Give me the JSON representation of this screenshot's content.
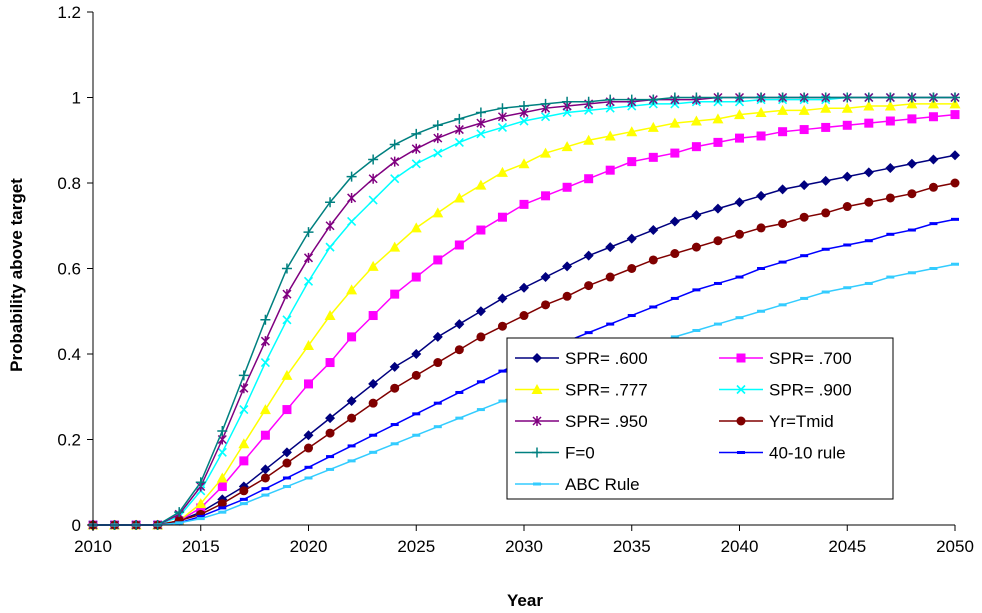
{
  "chart_data": {
    "type": "line",
    "xlabel": "Year",
    "ylabel": "Probability above target",
    "xlim": [
      2010,
      2050
    ],
    "ylim": [
      0,
      1.2
    ],
    "xticks": [
      "2010",
      "2015",
      "2020",
      "2025",
      "2030",
      "2035",
      "2040",
      "2045",
      "2050"
    ],
    "yticks": [
      "0",
      "0.2",
      "0.4",
      "0.6",
      "0.8",
      "1",
      "1.2"
    ],
    "grid": false,
    "legend_position": "bottom-right",
    "x": [
      2010,
      2011,
      2012,
      2013,
      2014,
      2015,
      2016,
      2017,
      2018,
      2019,
      2020,
      2021,
      2022,
      2023,
      2024,
      2025,
      2026,
      2027,
      2028,
      2029,
      2030,
      2031,
      2032,
      2033,
      2034,
      2035,
      2036,
      2037,
      2038,
      2039,
      2040,
      2041,
      2042,
      2043,
      2044,
      2045,
      2046,
      2047,
      2048,
      2049,
      2050
    ],
    "series": [
      {
        "name": "SPR= .600",
        "color": "#00007f",
        "marker": "diamond",
        "values": [
          0,
          0,
          0,
          0,
          0.01,
          0.03,
          0.06,
          0.09,
          0.13,
          0.17,
          0.21,
          0.25,
          0.29,
          0.33,
          0.37,
          0.4,
          0.44,
          0.47,
          0.5,
          0.53,
          0.555,
          0.58,
          0.605,
          0.63,
          0.65,
          0.67,
          0.69,
          0.71,
          0.725,
          0.74,
          0.755,
          0.77,
          0.785,
          0.795,
          0.805,
          0.815,
          0.825,
          0.835,
          0.845,
          0.855,
          0.865
        ]
      },
      {
        "name": "SPR= .700",
        "color": "#ff00ff",
        "marker": "square",
        "values": [
          0,
          0,
          0,
          0,
          0.01,
          0.04,
          0.09,
          0.15,
          0.21,
          0.27,
          0.33,
          0.38,
          0.44,
          0.49,
          0.54,
          0.58,
          0.62,
          0.655,
          0.69,
          0.72,
          0.75,
          0.77,
          0.79,
          0.81,
          0.83,
          0.85,
          0.86,
          0.87,
          0.885,
          0.895,
          0.905,
          0.91,
          0.92,
          0.925,
          0.93,
          0.935,
          0.94,
          0.945,
          0.95,
          0.955,
          0.96
        ]
      },
      {
        "name": "SPR= .777",
        "color": "#ffff00",
        "marker": "triangle",
        "values": [
          0,
          0,
          0,
          0,
          0.01,
          0.05,
          0.11,
          0.19,
          0.27,
          0.35,
          0.42,
          0.49,
          0.55,
          0.605,
          0.65,
          0.695,
          0.73,
          0.765,
          0.795,
          0.825,
          0.845,
          0.87,
          0.885,
          0.9,
          0.91,
          0.92,
          0.93,
          0.94,
          0.945,
          0.95,
          0.96,
          0.965,
          0.97,
          0.97,
          0.975,
          0.975,
          0.98,
          0.98,
          0.985,
          0.985,
          0.985
        ]
      },
      {
        "name": "SPR= .900",
        "color": "#00ffff",
        "marker": "x",
        "values": [
          0,
          0,
          0,
          0,
          0.02,
          0.08,
          0.17,
          0.27,
          0.38,
          0.48,
          0.57,
          0.65,
          0.71,
          0.76,
          0.81,
          0.845,
          0.87,
          0.895,
          0.915,
          0.93,
          0.945,
          0.955,
          0.965,
          0.97,
          0.975,
          0.98,
          0.985,
          0.985,
          0.99,
          0.99,
          0.99,
          0.995,
          0.995,
          0.995,
          0.995,
          1,
          1,
          1,
          1,
          1,
          1
        ]
      },
      {
        "name": "SPR= .950",
        "color": "#800080",
        "marker": "star",
        "values": [
          0,
          0,
          0,
          0,
          0.025,
          0.09,
          0.2,
          0.32,
          0.43,
          0.54,
          0.625,
          0.7,
          0.765,
          0.81,
          0.85,
          0.88,
          0.905,
          0.925,
          0.94,
          0.955,
          0.965,
          0.975,
          0.98,
          0.985,
          0.99,
          0.99,
          0.995,
          0.995,
          0.995,
          1,
          1,
          1,
          1,
          1,
          1,
          1,
          1,
          1,
          1,
          1,
          1
        ]
      },
      {
        "name": "Yr=Tmid",
        "color": "#800000",
        "marker": "circle",
        "values": [
          0,
          0,
          0,
          0,
          0.01,
          0.025,
          0.05,
          0.08,
          0.11,
          0.145,
          0.18,
          0.215,
          0.25,
          0.285,
          0.32,
          0.35,
          0.38,
          0.41,
          0.44,
          0.465,
          0.49,
          0.515,
          0.535,
          0.56,
          0.58,
          0.6,
          0.62,
          0.635,
          0.65,
          0.665,
          0.68,
          0.695,
          0.705,
          0.72,
          0.73,
          0.745,
          0.755,
          0.765,
          0.775,
          0.79,
          0.8
        ]
      },
      {
        "name": "F=0",
        "color": "#008080",
        "marker": "plus",
        "values": [
          0,
          0,
          0,
          0,
          0.03,
          0.1,
          0.22,
          0.35,
          0.48,
          0.6,
          0.685,
          0.755,
          0.815,
          0.855,
          0.89,
          0.915,
          0.935,
          0.95,
          0.965,
          0.975,
          0.98,
          0.985,
          0.99,
          0.99,
          0.995,
          0.995,
          0.995,
          1,
          1,
          1,
          1,
          1,
          1,
          1,
          1,
          1,
          1,
          1,
          1,
          1,
          1
        ]
      },
      {
        "name": "40-10 rule",
        "color": "#0000ff",
        "marker": "dash",
        "values": [
          0,
          0,
          0,
          0,
          0.005,
          0.02,
          0.04,
          0.06,
          0.085,
          0.11,
          0.135,
          0.16,
          0.185,
          0.21,
          0.235,
          0.26,
          0.285,
          0.31,
          0.335,
          0.36,
          0.385,
          0.41,
          0.43,
          0.45,
          0.47,
          0.49,
          0.51,
          0.53,
          0.55,
          0.565,
          0.58,
          0.6,
          0.615,
          0.63,
          0.645,
          0.655,
          0.665,
          0.68,
          0.69,
          0.705,
          0.715
        ]
      },
      {
        "name": "ABC Rule",
        "color": "#33ccff",
        "marker": "dash",
        "values": [
          0,
          0,
          0,
          0,
          0.005,
          0.015,
          0.03,
          0.05,
          0.07,
          0.09,
          0.11,
          0.13,
          0.15,
          0.17,
          0.19,
          0.21,
          0.23,
          0.25,
          0.27,
          0.29,
          0.31,
          0.33,
          0.35,
          0.37,
          0.39,
          0.41,
          0.425,
          0.44,
          0.455,
          0.47,
          0.485,
          0.5,
          0.515,
          0.53,
          0.545,
          0.555,
          0.565,
          0.58,
          0.59,
          0.6,
          0.61
        ]
      }
    ]
  }
}
